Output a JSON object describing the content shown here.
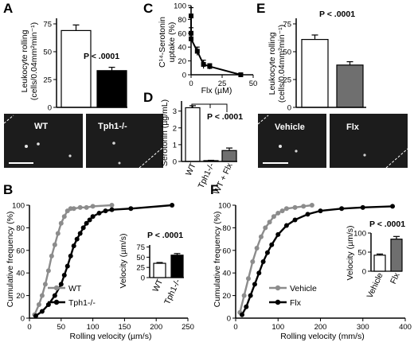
{
  "colors": {
    "black": "#000000",
    "gray": "#8c8c8c",
    "darkgray": "#6f6f6f",
    "micro": "#1c1c1c"
  },
  "chart_data": [
    {
      "panel": "A",
      "type": "bar",
      "ylabel_1": "Leukocyte rolling",
      "ylabel_2": "(cells/0.04mm²min⁻¹)",
      "yticks": [
        "0",
        "25",
        "50",
        "75"
      ],
      "ylim": [
        0,
        80
      ],
      "categories": [
        "WT",
        "Tph1-/-"
      ],
      "values": [
        69,
        33
      ],
      "errors": [
        5,
        3
      ],
      "bar_fill": [
        "white",
        "black"
      ],
      "annotation": "P < .0001"
    },
    {
      "panel": "C",
      "type": "line",
      "ylabel_1": "C¹⁴-Serotonin",
      "ylabel_2": "uptake (%)",
      "xlabel": "Flx (µM)",
      "xticks": [
        "0",
        "25",
        "50"
      ],
      "yticks": [
        "0",
        "20",
        "40",
        "60",
        "80",
        "100"
      ],
      "xlim": [
        0,
        50
      ],
      "ylim": [
        0,
        100
      ],
      "x": [
        0,
        0,
        0,
        5,
        10,
        15,
        40
      ],
      "y": [
        85,
        60,
        52,
        34,
        15,
        12,
        0
      ],
      "y_err": [
        12,
        8,
        10,
        6,
        6,
        4,
        2
      ]
    },
    {
      "panel": "D",
      "type": "bar",
      "ylabel": "Serotonin (µg/mL)",
      "yticks": [
        "0",
        "1",
        "2",
        "3"
      ],
      "ylim": [
        0,
        3.6
      ],
      "categories": [
        "WT",
        "Tph1-/-",
        "WT + Flx"
      ],
      "values": [
        3.2,
        0.05,
        0.65
      ],
      "errors": [
        0.12,
        0.02,
        0.15
      ],
      "bar_fill": [
        "white",
        "black",
        "gray"
      ],
      "annotation": "P < .0001"
    },
    {
      "panel": "E",
      "type": "bar",
      "ylabel_1": "Leukocyte rolling",
      "ylabel_2": "(cells/0.04mm²min⁻¹)",
      "yticks": [
        "0",
        "25",
        "50",
        "75"
      ],
      "ylim": [
        0,
        80
      ],
      "categories": [
        "Vehicle",
        "Flx"
      ],
      "values": [
        61,
        38
      ],
      "errors": [
        4,
        3
      ],
      "bar_fill": [
        "white",
        "gray"
      ],
      "annotation": "P < .0001"
    },
    {
      "panel": "B",
      "type": "line",
      "xlabel": "Rolling velocity (µm/s)",
      "ylabel": "Cumulative frequency (%)",
      "xticks": [
        "0",
        "50",
        "100",
        "150",
        "200",
        "250"
      ],
      "yticks": [
        "0",
        "20",
        "40",
        "60",
        "80",
        "100"
      ],
      "xlim": [
        0,
        250
      ],
      "ylim": [
        0,
        100
      ],
      "series": [
        {
          "name": "WT",
          "color": "gray",
          "x": [
            8,
            15,
            20,
            25,
            30,
            35,
            40,
            45,
            50,
            55,
            60,
            65,
            70,
            80,
            90,
            100,
            130
          ],
          "y": [
            3,
            12,
            20,
            30,
            42,
            55,
            65,
            75,
            84,
            90,
            95,
            97,
            97,
            98,
            98,
            99,
            100
          ]
        },
        {
          "name": "Tph1-/-",
          "color": "black",
          "x": [
            10,
            20,
            30,
            40,
            50,
            55,
            60,
            65,
            70,
            75,
            80,
            85,
            90,
            95,
            100,
            110,
            120,
            130,
            160,
            225
          ],
          "y": [
            2,
            6,
            12,
            20,
            30,
            38,
            46,
            55,
            64,
            70,
            75,
            80,
            84,
            87,
            90,
            93,
            95,
            96,
            97,
            100
          ]
        }
      ],
      "inset": {
        "ylabel": "Velocity (µm/s)",
        "yticks": [
          "0",
          "25",
          "50",
          "75"
        ],
        "ylim": [
          0,
          80
        ],
        "categories": [
          "WT",
          "Tph1-/-"
        ],
        "values": [
          35,
          55
        ],
        "errors": [
          2,
          4
        ],
        "bar_fill": [
          "white",
          "black"
        ],
        "annotation": "P < .0001"
      }
    },
    {
      "panel": "F",
      "type": "line",
      "xlabel": "Rolling velocity (mm/s)",
      "ylabel": "Cumulative frequency (%)",
      "xticks": [
        "0",
        "100",
        "200",
        "300",
        "400"
      ],
      "yticks": [
        "0",
        "20",
        "40",
        "60",
        "80",
        "100"
      ],
      "xlim": [
        0,
        400
      ],
      "ylim": [
        0,
        100
      ],
      "series": [
        {
          "name": "Vehicle",
          "color": "gray",
          "x": [
            10,
            20,
            30,
            40,
            50,
            60,
            70,
            80,
            90,
            100,
            110,
            120,
            140,
            160,
            180
          ],
          "y": [
            5,
            20,
            35,
            50,
            62,
            72,
            80,
            85,
            90,
            93,
            95,
            97,
            98,
            99,
            100
          ]
        },
        {
          "name": "Flx",
          "color": "black",
          "x": [
            15,
            25,
            35,
            45,
            55,
            65,
            75,
            85,
            100,
            120,
            140,
            170,
            200,
            250,
            300,
            370
          ],
          "y": [
            3,
            10,
            20,
            30,
            40,
            50,
            58,
            65,
            74,
            82,
            87,
            92,
            95,
            97,
            98,
            99
          ]
        }
      ],
      "inset": {
        "ylabel": "Velocity (µm/s)",
        "yticks": [
          "0",
          "50",
          "100"
        ],
        "ylim": [
          0,
          100
        ],
        "categories": [
          "Vehicle",
          "Flx"
        ],
        "values": [
          42,
          84
        ],
        "errors": [
          3,
          7
        ],
        "bar_fill": [
          "white",
          "gray"
        ],
        "annotation": "P < .0001"
      }
    }
  ],
  "micrographs": {
    "A_left": "WT",
    "A_right": "Tph1-/-",
    "E_left": "Vehicle",
    "E_right": "Flx"
  }
}
